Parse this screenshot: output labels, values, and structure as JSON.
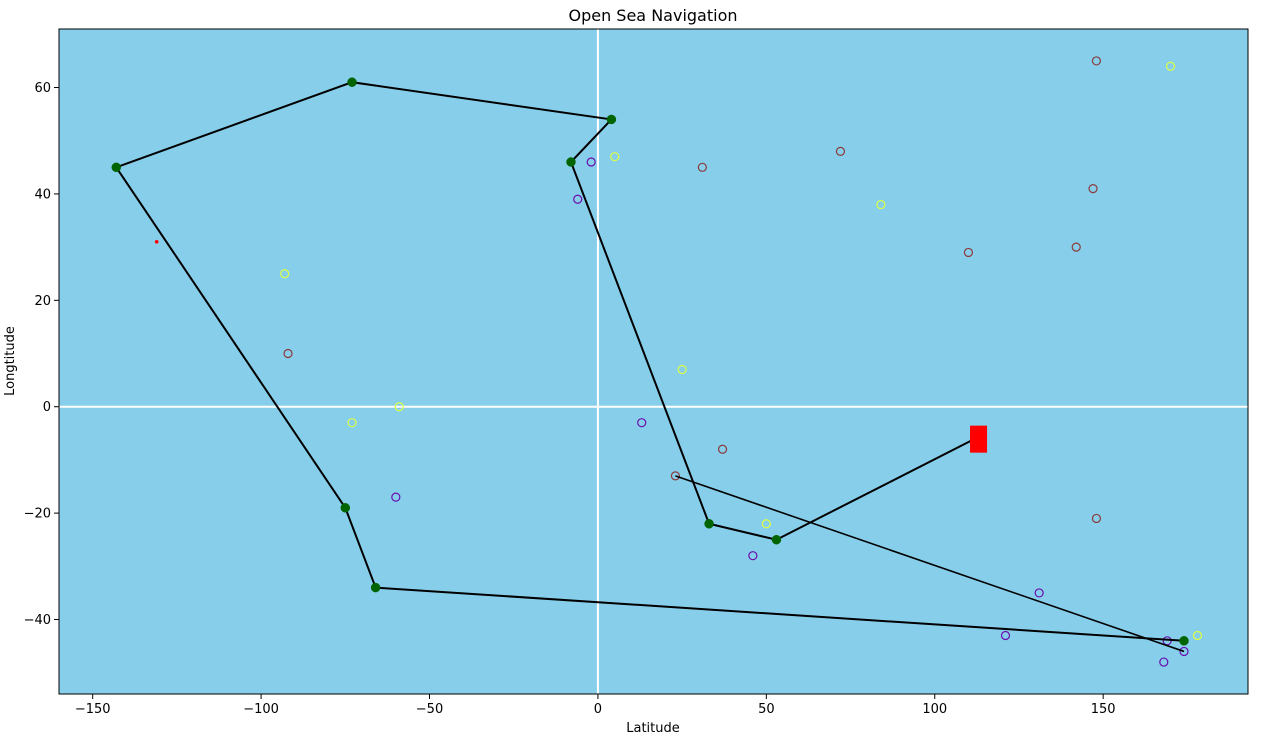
{
  "chart_data": {
    "type": "scatter",
    "title": "Open Sea Navigation",
    "xlabel": "Latitude",
    "ylabel": "Longtitude",
    "xlim": [
      -160,
      193
    ],
    "ylim": [
      -54,
      71
    ],
    "grid": false,
    "background_color": "#87CEEB",
    "x_ticks": [
      -150,
      -100,
      -50,
      0,
      50,
      100,
      150
    ],
    "y_ticks": [
      -40,
      -20,
      0,
      20,
      40,
      60
    ],
    "x_tick_labels": [
      "−150",
      "−100",
      "−50",
      "0",
      "50",
      "100",
      "150"
    ],
    "y_tick_labels": [
      "−40",
      "−20",
      "0",
      "20",
      "40",
      "60"
    ],
    "reference_lines": {
      "x": 0,
      "y": 0,
      "color": "#FFFFFF"
    },
    "route": {
      "color": "#000000",
      "marker_color": "#006400",
      "points": [
        [
          112,
          -6
        ],
        [
          53,
          -25
        ],
        [
          33,
          -22
        ],
        [
          -8,
          46
        ],
        [
          4,
          54
        ],
        [
          -73,
          61
        ],
        [
          -143,
          45
        ],
        [
          -75,
          -19
        ],
        [
          -66,
          -34
        ],
        [
          174,
          -44
        ]
      ]
    },
    "extra_path": {
      "color": "#000000",
      "points": [
        [
          23,
          -13
        ],
        [
          174,
          -46
        ]
      ]
    },
    "destination": {
      "x": 113,
      "y": -6,
      "color": "#FF0000"
    },
    "start_marker": {
      "x": -131,
      "y": 31,
      "color": "#FF0000"
    },
    "series": [
      {
        "color": "#8B3A3A",
        "points": [
          [
            148,
            65
          ],
          [
            72,
            48
          ],
          [
            31,
            45
          ],
          [
            147,
            41
          ],
          [
            142,
            30
          ],
          [
            110,
            29
          ],
          [
            -92,
            10
          ],
          [
            37,
            -8
          ],
          [
            23,
            -13
          ],
          [
            148,
            -21
          ]
        ]
      },
      {
        "color": "#DDFF44",
        "points": [
          [
            170,
            64
          ],
          [
            5,
            47
          ],
          [
            84,
            38
          ],
          [
            -93,
            25
          ],
          [
            25,
            7
          ],
          [
            -59,
            0
          ],
          [
            -73,
            -3
          ],
          [
            50,
            -22
          ],
          [
            178,
            -43
          ]
        ]
      },
      {
        "color": "#6A0DAD",
        "points": [
          [
            -2,
            46
          ],
          [
            -6,
            39
          ],
          [
            13,
            -3
          ],
          [
            -60,
            -17
          ],
          [
            46,
            -28
          ],
          [
            131,
            -35
          ],
          [
            121,
            -43
          ],
          [
            169,
            -44
          ],
          [
            174,
            -46
          ],
          [
            168,
            -48
          ]
        ]
      }
    ]
  }
}
